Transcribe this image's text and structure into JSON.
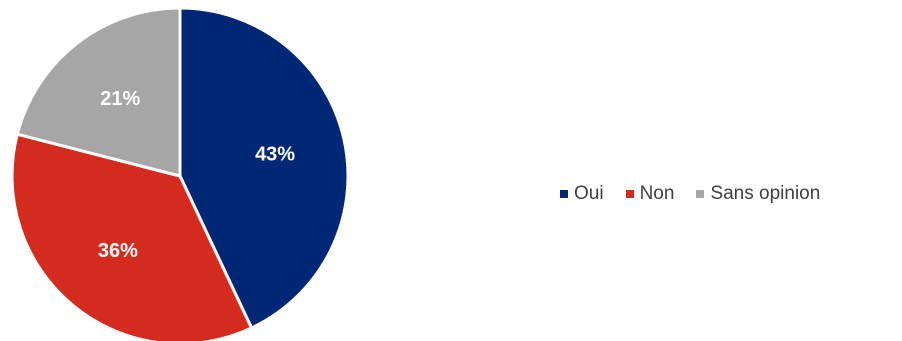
{
  "chart_data": {
    "type": "pie",
    "categories": [
      "Oui",
      "Non",
      "Sans opinion"
    ],
    "values": [
      43,
      36,
      21
    ],
    "labels": [
      "43%",
      "36%",
      "21%"
    ],
    "colors": [
      "#002776",
      "#D52B1E",
      "#A6A6A6"
    ],
    "legend": "right"
  }
}
